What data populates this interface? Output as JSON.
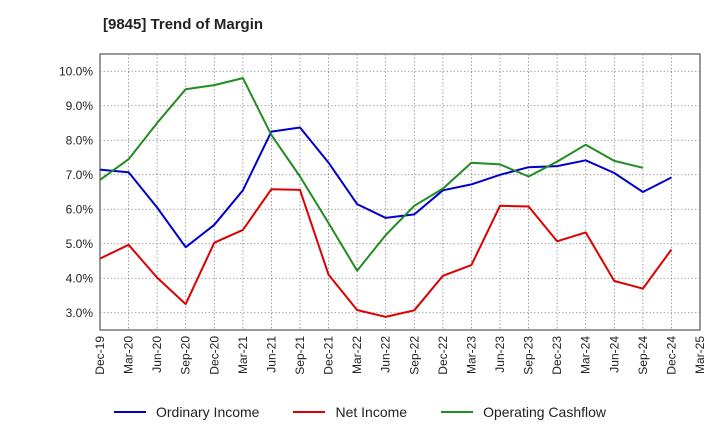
{
  "chart_data": {
    "type": "line",
    "title": "[9845]  Trend of Margin",
    "x": [
      "Dec-19",
      "Mar-20",
      "Jun-20",
      "Sep-20",
      "Dec-20",
      "Mar-21",
      "Jun-21",
      "Sep-21",
      "Dec-21",
      "Mar-22",
      "Jun-22",
      "Sep-22",
      "Dec-22",
      "Mar-23",
      "Jun-23",
      "Sep-23",
      "Dec-23",
      "Mar-24",
      "Jun-24",
      "Sep-24",
      "Dec-24",
      "Mar-25"
    ],
    "ylim": [
      2.5,
      10.5
    ],
    "yticks": [
      3.0,
      4.0,
      5.0,
      6.0,
      7.0,
      8.0,
      9.0,
      10.0
    ],
    "ytick_labels": [
      "3.0%",
      "4.0%",
      "5.0%",
      "6.0%",
      "7.0%",
      "8.0%",
      "9.0%",
      "10.0%"
    ],
    "grid": true,
    "legend_position": "bottom",
    "series": [
      {
        "name": "Ordinary Income",
        "color": "#0000cc",
        "values": [
          7.15,
          7.07,
          6.05,
          4.9,
          5.55,
          6.55,
          8.25,
          8.37,
          7.35,
          6.15,
          5.75,
          5.85,
          6.55,
          6.72,
          7.0,
          7.22,
          7.25,
          7.42,
          7.05,
          6.5,
          6.92,
          null
        ]
      },
      {
        "name": "Net Income",
        "color": "#dd0000",
        "values": [
          4.57,
          4.97,
          4.02,
          3.25,
          5.03,
          5.4,
          6.58,
          6.56,
          4.1,
          3.08,
          2.88,
          3.07,
          4.07,
          4.38,
          6.1,
          6.08,
          5.07,
          5.33,
          3.92,
          3.7,
          4.83,
          null
        ]
      },
      {
        "name": "Operating Cashflow",
        "color": "#228b22",
        "values": [
          6.85,
          7.45,
          8.5,
          9.48,
          9.6,
          9.8,
          8.15,
          6.95,
          5.6,
          4.22,
          5.25,
          6.1,
          6.6,
          7.35,
          7.3,
          6.95,
          7.38,
          7.87,
          7.4,
          7.2,
          null,
          null
        ]
      }
    ]
  }
}
